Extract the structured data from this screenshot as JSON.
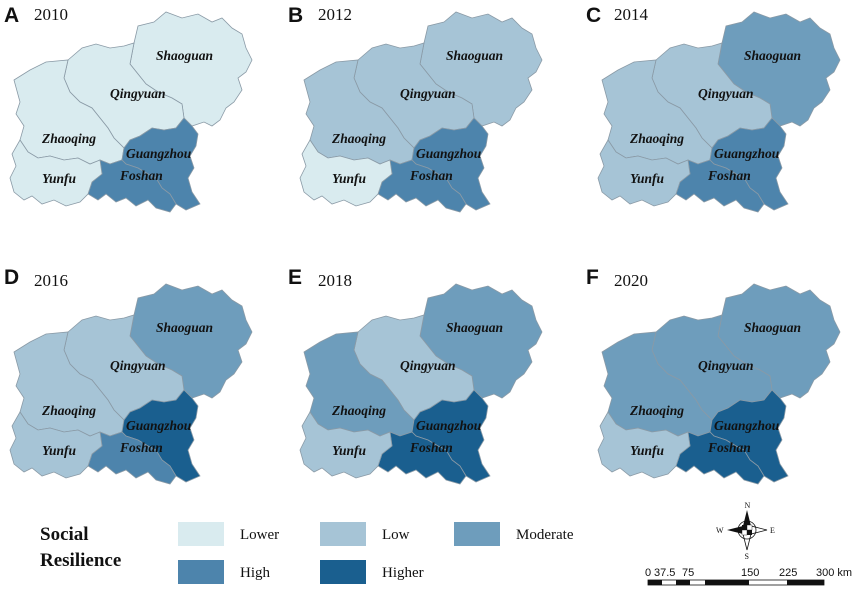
{
  "colors": {
    "Lower": "#d9ebef",
    "Low": "#a6c4d6",
    "Moderate": "#6e9dbc",
    "High": "#4d84ac",
    "Higher": "#1a5f8f"
  },
  "cities": [
    "Shaoguan",
    "Qingyuan",
    "Zhaoqing",
    "Guangzhou",
    "Foshan",
    "Yunfu"
  ],
  "panels": [
    {
      "letter": "A",
      "year": "2010",
      "classes": {
        "Shaoguan": "Lower",
        "Qingyuan": "Lower",
        "Zhaoqing": "Lower",
        "Guangzhou": "High",
        "Foshan": "High",
        "Yunfu": "Lower"
      }
    },
    {
      "letter": "B",
      "year": "2012",
      "classes": {
        "Shaoguan": "Low",
        "Qingyuan": "Low",
        "Zhaoqing": "Low",
        "Guangzhou": "High",
        "Foshan": "High",
        "Yunfu": "Lower"
      }
    },
    {
      "letter": "C",
      "year": "2014",
      "classes": {
        "Shaoguan": "Moderate",
        "Qingyuan": "Low",
        "Zhaoqing": "Low",
        "Guangzhou": "High",
        "Foshan": "High",
        "Yunfu": "Low"
      }
    },
    {
      "letter": "D",
      "year": "2016",
      "classes": {
        "Shaoguan": "Moderate",
        "Qingyuan": "Low",
        "Zhaoqing": "Low",
        "Guangzhou": "Higher",
        "Foshan": "High",
        "Yunfu": "Low"
      }
    },
    {
      "letter": "E",
      "year": "2018",
      "classes": {
        "Shaoguan": "Moderate",
        "Qingyuan": "Low",
        "Zhaoqing": "Moderate",
        "Guangzhou": "Higher",
        "Foshan": "Higher",
        "Yunfu": "Low"
      }
    },
    {
      "letter": "F",
      "year": "2020",
      "classes": {
        "Shaoguan": "Moderate",
        "Qingyuan": "Moderate",
        "Zhaoqing": "Moderate",
        "Guangzhou": "Higher",
        "Foshan": "Higher",
        "Yunfu": "Low"
      }
    }
  ],
  "legend": {
    "title_line1": "Social",
    "title_line2": "Resilience",
    "items": [
      "Lower",
      "Low",
      "Moderate",
      "High",
      "Higher"
    ]
  },
  "compass": {
    "n": "N",
    "s": "S",
    "e": "E",
    "w": "W"
  },
  "scale_bar": {
    "ticks": [
      "0",
      "37.5",
      "75",
      "150",
      "225",
      "300 km"
    ]
  }
}
